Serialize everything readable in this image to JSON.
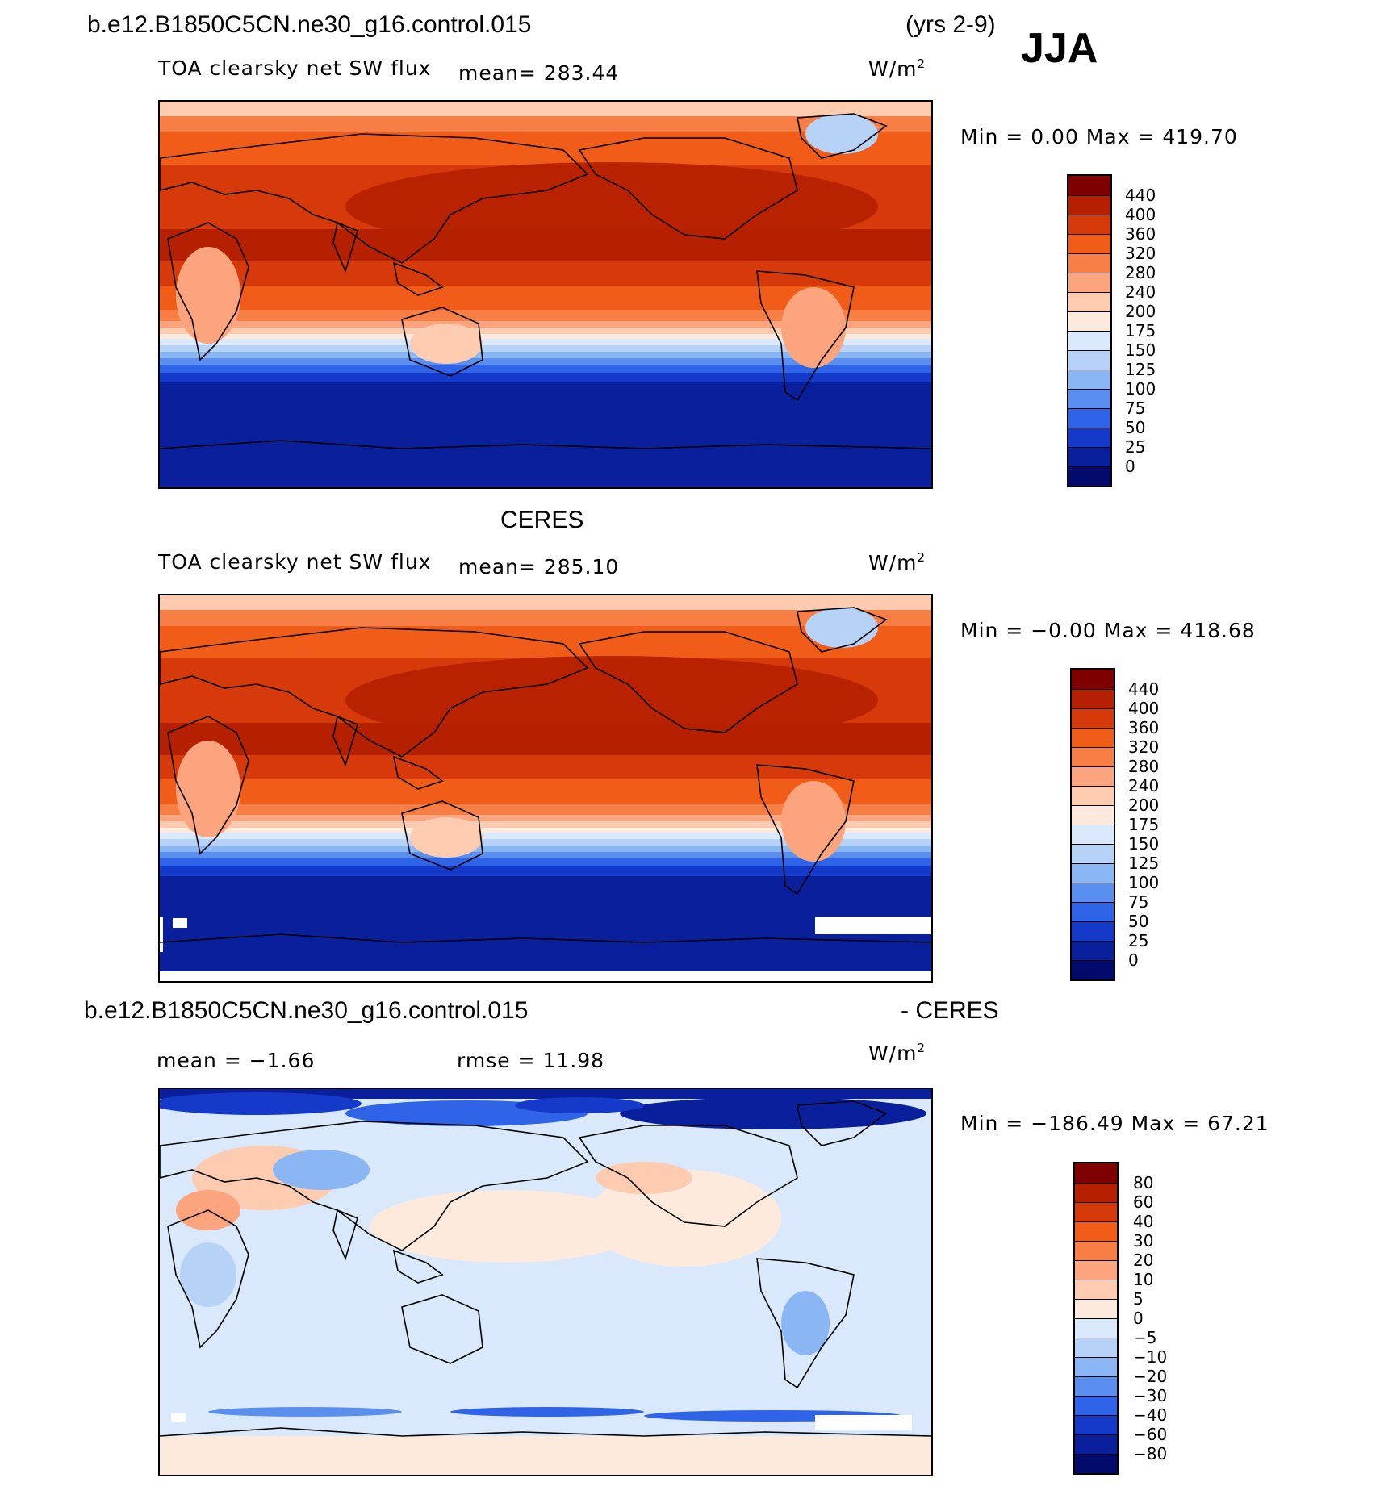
{
  "header": {
    "case_title": "b.e12.B1850C5CN.ne30_g16.control.015",
    "years": "(yrs 2-9)",
    "season": "JJA"
  },
  "panels": [
    {
      "label": "TOA clearsky net SW flux",
      "mean_text": "mean=  283.44",
      "units": "W/m",
      "units_sup": "2",
      "minmax": "Min =    0.00 Max =  419.70",
      "colorbar_labels": [
        "440",
        "400",
        "360",
        "320",
        "280",
        "240",
        "200",
        "175",
        "150",
        "125",
        "100",
        "75",
        "50",
        "25",
        "0"
      ]
    },
    {
      "title": "CERES",
      "label": "TOA clearsky net SW flux",
      "mean_text": "mean=  285.10",
      "units": "W/m",
      "units_sup": "2",
      "minmax": "Min =   −0.00 Max =  418.68",
      "colorbar_labels": [
        "440",
        "400",
        "360",
        "320",
        "280",
        "240",
        "200",
        "175",
        "150",
        "125",
        "100",
        "75",
        "50",
        "25",
        "0"
      ]
    },
    {
      "title_left": "b.e12.B1850C5CN.ne30_g16.control.015",
      "title_right": "- CERES",
      "mean_text": "mean =   −1.66",
      "rmse_text": "rmse =   11.98",
      "units": "W/m",
      "units_sup": "2",
      "minmax": "Min = −186.49 Max =   67.21",
      "colorbar_labels": [
        "80",
        "60",
        "40",
        "30",
        "20",
        "10",
        "5",
        "0",
        "−5",
        "−10",
        "−20",
        "−30",
        "−40",
        "−60",
        "−80"
      ]
    }
  ],
  "colors": {
    "abs_scale": [
      "#7f0000",
      "#b52000",
      "#d63a0a",
      "#f25c19",
      "#f77e45",
      "#fba47d",
      "#fdcbb0",
      "#fdeadd",
      "#d9e9fb",
      "#b6d2f7",
      "#8ab6f3",
      "#5a8ff0",
      "#2f63e8",
      "#1539c8",
      "#0a1f9c",
      "#020a6b"
    ],
    "diff_scale": [
      "#7f0000",
      "#b52000",
      "#d63a0a",
      "#f25c19",
      "#f77e45",
      "#fba47d",
      "#fdcbb0",
      "#fdeadd",
      "#d9e9fb",
      "#b6d2f7",
      "#8ab6f3",
      "#5a8ff0",
      "#2f63e8",
      "#1539c8",
      "#0a1f9c",
      "#020a6b"
    ],
    "coastline": "#000000"
  }
}
